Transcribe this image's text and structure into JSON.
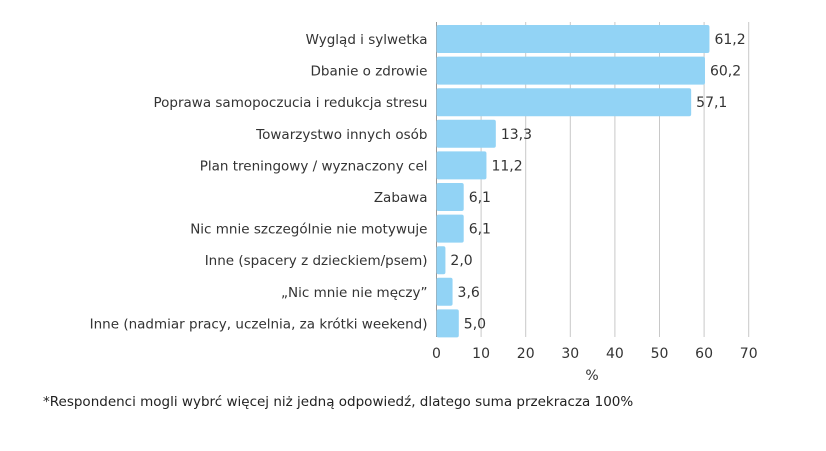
{
  "chart_data": {
    "type": "bar",
    "orientation": "horizontal",
    "categories": [
      "Wygląd i sylwetka",
      "Dbanie o zdrowie",
      "Poprawa samopoczucia i redukcja stresu",
      "Towarzystwo innych osób",
      "Plan treningowy / wyznaczony cel",
      "Zabawa",
      "Nic mnie szczególnie nie motywuje",
      "Inne (spacery z dzieckiem/psem)",
      "„Nic mnie nie męczy”",
      "Inne (nadmiar pracy, uczelnia, za krótki weekend)"
    ],
    "values": [
      61.2,
      60.2,
      57.1,
      13.3,
      11.2,
      6.1,
      6.1,
      2.0,
      3.6,
      5.0
    ],
    "value_labels": [
      "61,2",
      "60,2",
      "57,1",
      "13,3",
      "11,2",
      "6,1",
      "6,1",
      "2,0",
      "3,6",
      "5,0"
    ],
    "xlabel": "%",
    "xlim": [
      0,
      70
    ],
    "xticks": [
      "0",
      "10",
      "20",
      "30",
      "40",
      "50",
      "60",
      "70"
    ],
    "grid": true,
    "bar_color": "#92d3f5",
    "grid_color": "#c8c8c8"
  },
  "footnote": "*Respondenci mogli wybrć więcej niż jedną odpowiedź, dlatego suma przekracza 100%"
}
